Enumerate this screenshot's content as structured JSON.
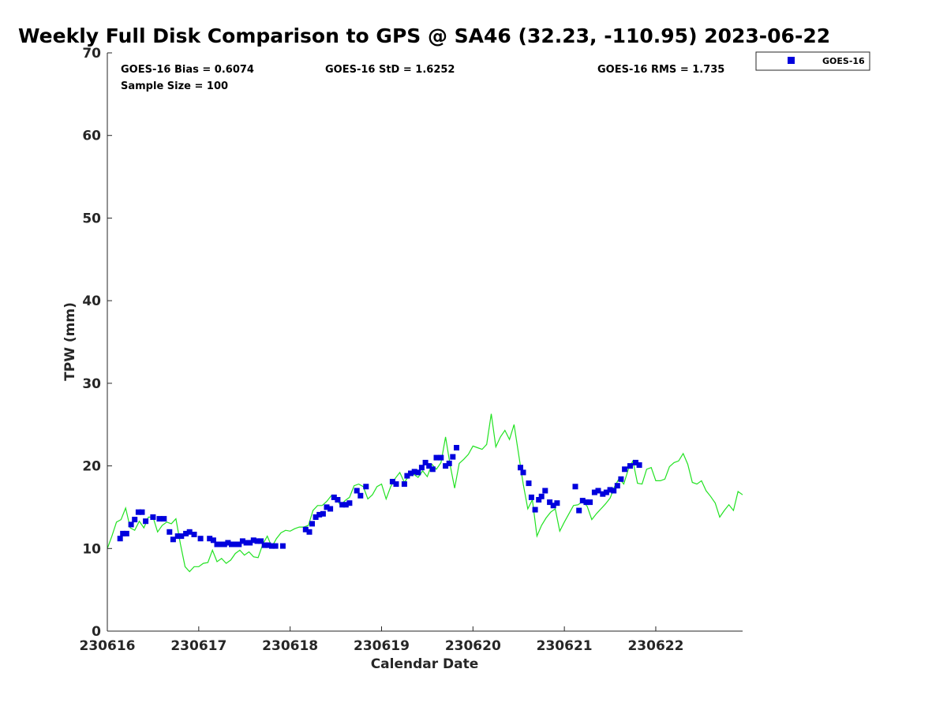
{
  "chart_data": {
    "type": "scatter",
    "title": "Weekly Full Disk Comparison to GPS @ SA46 (32.23, -110.95) 2023-06-22",
    "xlabel": "Calendar Date",
    "ylabel": "TPW (mm)",
    "xlim": [
      230616,
      230622.95
    ],
    "ylim": [
      0,
      70
    ],
    "yticks": [
      0,
      10,
      20,
      30,
      40,
      50,
      60,
      70
    ],
    "xticks": [
      {
        "value": 230616,
        "label": "230616"
      },
      {
        "value": 230617,
        "label": "230617"
      },
      {
        "value": 230618,
        "label": "230618"
      },
      {
        "value": 230619,
        "label": "230619"
      },
      {
        "value": 230620,
        "label": "230620"
      },
      {
        "value": 230621,
        "label": "230621"
      },
      {
        "value": 230622,
        "label": "230622"
      }
    ],
    "stats": {
      "bias": "GOES-16 Bias = 0.6074",
      "std": "GOES-16 StD = 1.6252",
      "rms": "GOES-16 RMS = 1.735",
      "sample_size": "Sample Size = 100"
    },
    "legend": {
      "position": "top-right",
      "entries": [
        "GOES-16"
      ]
    },
    "colors": {
      "goes": "#0000dd",
      "gps": "#22e222",
      "axis": "#262626"
    },
    "series": [
      {
        "name": "GOES-16",
        "marker": "square",
        "x": [
          230616.14,
          230616.17,
          230616.21,
          230616.26,
          230616.3,
          230616.34,
          230616.38,
          230616.42,
          230616.5,
          230616.57,
          230616.62,
          230616.68,
          230616.72,
          230616.77,
          230616.81,
          230616.86,
          230616.9,
          230616.95,
          230617.02,
          230617.12,
          230617.16,
          230617.2,
          230617.24,
          230617.28,
          230617.32,
          230617.36,
          230617.4,
          230617.44,
          230617.48,
          230617.52,
          230617.56,
          230617.6,
          230617.64,
          230617.68,
          230617.72,
          230617.76,
          230617.8,
          230617.84,
          230617.92,
          230618.17,
          230618.21,
          230618.24,
          230618.28,
          230618.32,
          230618.36,
          230618.4,
          230618.44,
          230618.48,
          230618.52,
          230618.57,
          230618.61,
          230618.65,
          230618.73,
          230618.77,
          230618.83,
          230619.12,
          230619.16,
          230619.25,
          230619.28,
          230619.32,
          230619.36,
          230619.4,
          230619.44,
          230619.48,
          230619.52,
          230619.56,
          230619.6,
          230619.65,
          230619.7,
          230619.74,
          230619.78,
          230619.82,
          230620.52,
          230620.55,
          230620.61,
          230620.64,
          230620.68,
          230620.72,
          230620.75,
          230620.79,
          230620.84,
          230620.88,
          230620.92,
          230621.12,
          230621.16,
          230621.2,
          230621.24,
          230621.28,
          230621.33,
          230621.37,
          230621.42,
          230621.46,
          230621.5,
          230621.54,
          230621.58,
          230621.62,
          230621.66,
          230621.72,
          230621.78,
          230621.82
        ],
        "y": [
          11.2,
          11.8,
          11.8,
          12.9,
          13.5,
          14.4,
          14.4,
          13.3,
          13.8,
          13.6,
          13.6,
          12.0,
          11.1,
          11.5,
          11.5,
          11.8,
          12.0,
          11.7,
          11.2,
          11.2,
          11.0,
          10.5,
          10.5,
          10.5,
          10.7,
          10.5,
          10.5,
          10.5,
          10.9,
          10.7,
          10.7,
          11.0,
          10.9,
          10.9,
          10.4,
          10.4,
          10.3,
          10.3,
          10.3,
          12.3,
          12.0,
          13.0,
          13.8,
          14.1,
          14.2,
          15.0,
          14.8,
          16.2,
          15.9,
          15.3,
          15.3,
          15.5,
          17.0,
          16.4,
          17.5,
          18.1,
          17.8,
          17.8,
          18.8,
          19.1,
          19.3,
          19.2,
          19.8,
          20.4,
          20.0,
          19.6,
          21.0,
          21.0,
          20.0,
          20.3,
          21.1,
          22.2,
          19.8,
          19.2,
          17.9,
          16.2,
          14.7,
          15.9,
          16.3,
          17.0,
          15.6,
          15.2,
          15.5,
          17.5,
          14.6,
          15.8,
          15.6,
          15.6,
          16.8,
          17.0,
          16.6,
          16.8,
          17.1,
          17.0,
          17.6,
          18.4,
          19.6,
          20.0,
          20.4,
          20.1
        ]
      },
      {
        "name": "GPS",
        "marker": "line",
        "x": [
          230616.0,
          230616.05,
          230616.1,
          230616.15,
          230616.2,
          230616.25,
          230616.3,
          230616.35,
          230616.4,
          230616.45,
          230616.5,
          230616.55,
          230616.6,
          230616.65,
          230616.7,
          230616.75,
          230616.8,
          230616.85,
          230616.9,
          230616.95,
          230617.0,
          230617.05,
          230617.1,
          230617.15,
          230617.2,
          230617.25,
          230617.3,
          230617.35,
          230617.4,
          230617.45,
          230617.5,
          230617.55,
          230617.6,
          230617.65,
          230617.7,
          230617.75,
          230617.8,
          230617.85,
          230617.9,
          230617.95,
          230618.0,
          230618.05,
          230618.1,
          230618.15,
          230618.2,
          230618.25,
          230618.3,
          230618.35,
          230618.4,
          230618.45,
          230618.5,
          230618.55,
          230618.6,
          230618.65,
          230618.7,
          230618.75,
          230618.8,
          230618.85,
          230618.9,
          230618.95,
          230619.0,
          230619.05,
          230619.1,
          230619.15,
          230619.2,
          230619.25,
          230619.3,
          230619.35,
          230619.4,
          230619.45,
          230619.5,
          230619.55,
          230619.6,
          230619.65,
          230619.7,
          230619.75,
          230619.8,
          230619.85,
          230619.9,
          230619.95,
          230620.0,
          230620.05,
          230620.1,
          230620.15,
          230620.2,
          230620.25,
          230620.3,
          230620.35,
          230620.4,
          230620.45,
          230620.5,
          230620.55,
          230620.6,
          230620.65,
          230620.7,
          230620.75,
          230620.8,
          230620.85,
          230620.9,
          230620.95,
          230621.0,
          230621.05,
          230621.1,
          230621.15,
          230621.2,
          230621.25,
          230621.3,
          230621.35,
          230621.4,
          230621.45,
          230621.5,
          230621.55,
          230621.6,
          230621.65,
          230621.7,
          230621.75,
          230621.8,
          230621.85,
          230621.9,
          230621.95,
          230622.0,
          230622.05,
          230622.1,
          230622.15,
          230622.2,
          230622.25,
          230622.3,
          230622.35,
          230622.4,
          230622.45,
          230622.5,
          230622.55,
          230622.6,
          230622.65,
          230622.7,
          230622.75,
          230622.8,
          230622.85,
          230622.9,
          230622.95
        ],
        "y": [
          10.0,
          11.5,
          13.2,
          13.5,
          14.9,
          12.5,
          12.2,
          13.3,
          12.5,
          13.8,
          13.8,
          12.0,
          12.8,
          13.2,
          13.0,
          13.6,
          10.5,
          7.8,
          7.2,
          7.8,
          7.8,
          8.2,
          8.3,
          9.8,
          8.4,
          8.8,
          8.2,
          8.6,
          9.4,
          9.8,
          9.2,
          9.6,
          9.0,
          8.9,
          10.5,
          11.5,
          10.2,
          11.2,
          11.9,
          12.2,
          12.1,
          12.4,
          12.6,
          12.6,
          12.8,
          14.6,
          15.2,
          15.2,
          15.7,
          16.4,
          16.2,
          15.2,
          15.8,
          16.2,
          17.6,
          17.8,
          17.5,
          16.0,
          16.5,
          17.5,
          17.8,
          16.0,
          17.5,
          18.5,
          19.2,
          18.0,
          18.8,
          19.0,
          18.6,
          19.4,
          18.7,
          20.2,
          19.6,
          20.4,
          23.5,
          20.1,
          17.3,
          20.3,
          20.8,
          21.4,
          22.4,
          22.2,
          22.0,
          22.6,
          26.3,
          22.3,
          23.5,
          24.3,
          23.2,
          25.0,
          21.4,
          17.8,
          14.8,
          15.9,
          11.5,
          12.8,
          13.7,
          14.4,
          14.8,
          12.1,
          13.2,
          14.2,
          15.2,
          15.3,
          15.7,
          15.1,
          13.5,
          14.2,
          14.8,
          15.4,
          16.1,
          17.5,
          18.5,
          17.8,
          19.6,
          20.6,
          17.9,
          17.8,
          19.6,
          19.8,
          18.2,
          18.2,
          18.4,
          19.9,
          20.4,
          20.6,
          21.5,
          20.2,
          18.0,
          17.8,
          18.2,
          17.0,
          16.3,
          15.5,
          13.8,
          14.6,
          15.3,
          14.6,
          16.9,
          16.5
        ]
      }
    ]
  }
}
